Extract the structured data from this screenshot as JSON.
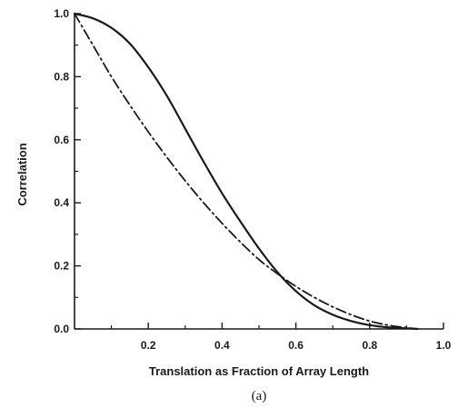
{
  "chart_data": {
    "type": "line",
    "title": "",
    "xlabel": "Translation as Fraction of Array Length",
    "ylabel": "Correlation",
    "caption": "(a)",
    "xlim": [
      0,
      1.0
    ],
    "ylim": [
      0,
      1.0
    ],
    "x_ticks": [
      0.2,
      0.4,
      0.6,
      0.8,
      1.0
    ],
    "x_tick_labels": [
      "0.2",
      "0.4",
      "0.6",
      "0.8",
      "1.0"
    ],
    "x_minor_ticks": [
      0.1,
      0.3,
      0.5,
      0.7,
      0.9
    ],
    "y_ticks": [
      0.0,
      0.2,
      0.4,
      0.6,
      0.8,
      1.0
    ],
    "y_tick_labels": [
      "0.0",
      "0.2",
      "0.4",
      "0.6",
      "0.8",
      "1.0"
    ],
    "y_minor_ticks": [
      0.1,
      0.3,
      0.5,
      0.7,
      0.9
    ],
    "grid": false,
    "series": [
      {
        "style": "solid",
        "color": "#1a1a1a",
        "x": [
          0.0,
          0.05,
          0.1,
          0.15,
          0.2,
          0.25,
          0.3,
          0.35,
          0.4,
          0.45,
          0.5,
          0.55,
          0.6,
          0.65,
          0.7,
          0.75,
          0.8,
          0.85,
          0.9,
          0.93
        ],
        "y": [
          1.0,
          0.985,
          0.955,
          0.905,
          0.83,
          0.74,
          0.635,
          0.53,
          0.43,
          0.34,
          0.255,
          0.18,
          0.12,
          0.075,
          0.045,
          0.025,
          0.012,
          0.005,
          0.002,
          0.0
        ]
      },
      {
        "style": "dash-dot",
        "color": "#1a1a1a",
        "x": [
          0.0,
          0.05,
          0.1,
          0.15,
          0.2,
          0.25,
          0.3,
          0.35,
          0.4,
          0.45,
          0.5,
          0.55,
          0.6,
          0.65,
          0.7,
          0.75,
          0.8,
          0.85,
          0.9,
          0.93
        ],
        "y": [
          1.0,
          0.9,
          0.8,
          0.71,
          0.625,
          0.545,
          0.47,
          0.4,
          0.335,
          0.275,
          0.22,
          0.175,
          0.135,
          0.1,
          0.07,
          0.045,
          0.025,
          0.012,
          0.004,
          0.0
        ]
      }
    ]
  }
}
